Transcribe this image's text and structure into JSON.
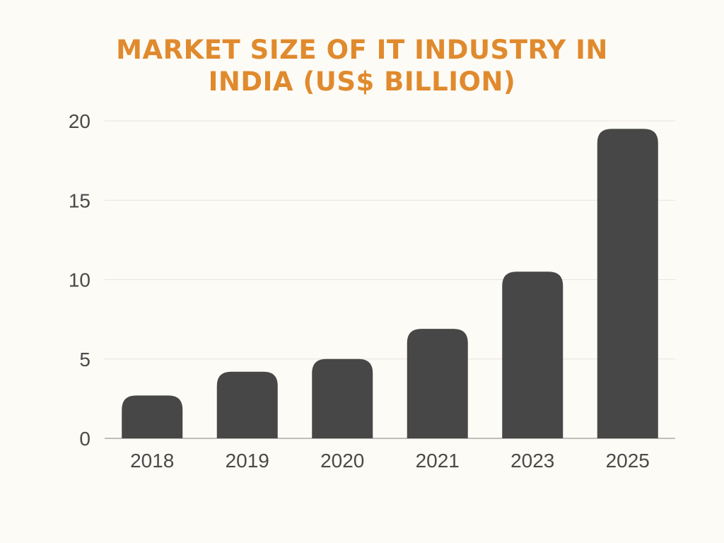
{
  "chart_data": {
    "type": "bar",
    "title": "MARKET SIZE OF IT INDUSTRY IN INDIA (US$ BILLION)",
    "title_lines": [
      "MARKET SIZE OF IT INDUSTRY IN",
      "INDIA (US$ BILLION)"
    ],
    "categories": [
      "2018",
      "2019",
      "2020",
      "2021",
      "2023",
      "2025"
    ],
    "values": [
      2.7,
      4.2,
      5.0,
      6.9,
      10.5,
      19.5
    ],
    "xlabel": "",
    "ylabel": "",
    "ylim": [
      0,
      20
    ],
    "yticks": [
      "0",
      "5",
      "10",
      "15",
      "20"
    ],
    "grid": true,
    "legend": "none",
    "colors": {
      "bar": "#474747",
      "title": "#e08a2e",
      "grid": "#e6e3dc",
      "axis": "#9a9a9a",
      "background": "#fdfbf5"
    }
  }
}
